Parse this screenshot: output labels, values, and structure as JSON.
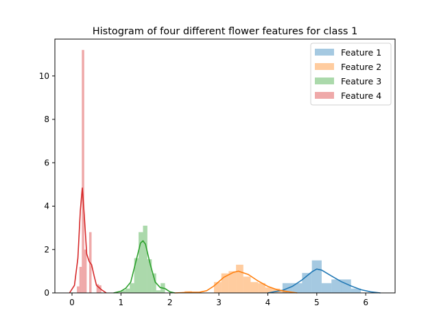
{
  "chart_data": {
    "type": "histogram",
    "title": "Histogram of four different flower features for class 1",
    "xlabel": "",
    "ylabel": "",
    "xlim": [
      -0.35,
      6.6
    ],
    "ylim": [
      0,
      11.7
    ],
    "x_ticks": [
      0,
      1,
      2,
      3,
      4,
      5,
      6
    ],
    "y_ticks": [
      0,
      2,
      4,
      6,
      8,
      10
    ],
    "grid": false,
    "legend_position": "top-right",
    "series": [
      {
        "name": "Feature 1",
        "color": "#1f77b4",
        "bins": [
          {
            "x0": 4.3,
            "x1": 4.5,
            "y": 0.45
          },
          {
            "x0": 4.5,
            "x1": 4.7,
            "y": 0.45
          },
          {
            "x0": 4.7,
            "x1": 4.9,
            "y": 0.92
          },
          {
            "x0": 4.9,
            "x1": 5.1,
            "y": 1.5
          },
          {
            "x0": 5.1,
            "x1": 5.3,
            "y": 0.45
          },
          {
            "x0": 5.3,
            "x1": 5.5,
            "y": 0.62
          },
          {
            "x0": 5.5,
            "x1": 5.7,
            "y": 0.62
          },
          {
            "x0": 5.7,
            "x1": 5.9,
            "y": 0.2
          }
        ],
        "kde": [
          [
            4.0,
            0.0
          ],
          [
            4.3,
            0.12
          ],
          [
            4.5,
            0.3
          ],
          [
            4.7,
            0.6
          ],
          [
            4.9,
            0.97
          ],
          [
            5.0,
            1.1
          ],
          [
            5.1,
            1.05
          ],
          [
            5.3,
            0.78
          ],
          [
            5.5,
            0.52
          ],
          [
            5.7,
            0.32
          ],
          [
            5.9,
            0.15
          ],
          [
            6.1,
            0.05
          ],
          [
            6.3,
            0.0
          ]
        ]
      },
      {
        "name": "Feature 2",
        "color": "#ff7f0e",
        "bins": [
          {
            "x0": 2.3,
            "x1": 2.45,
            "y": 0.08
          },
          {
            "x0": 2.9,
            "x1": 3.05,
            "y": 0.5
          },
          {
            "x0": 3.05,
            "x1": 3.2,
            "y": 0.9
          },
          {
            "x0": 3.2,
            "x1": 3.35,
            "y": 1.0
          },
          {
            "x0": 3.35,
            "x1": 3.5,
            "y": 1.3
          },
          {
            "x0": 3.5,
            "x1": 3.65,
            "y": 0.75
          },
          {
            "x0": 3.65,
            "x1": 3.8,
            "y": 0.5
          },
          {
            "x0": 3.8,
            "x1": 3.95,
            "y": 0.45
          },
          {
            "x0": 3.95,
            "x1": 4.1,
            "y": 0.25
          },
          {
            "x0": 4.1,
            "x1": 4.25,
            "y": 0.2
          },
          {
            "x0": 4.25,
            "x1": 4.4,
            "y": 0.1
          }
        ],
        "kde": [
          [
            2.1,
            0.0
          ],
          [
            2.4,
            0.03
          ],
          [
            2.6,
            0.03
          ],
          [
            2.75,
            0.1
          ],
          [
            2.9,
            0.32
          ],
          [
            3.1,
            0.72
          ],
          [
            3.3,
            0.95
          ],
          [
            3.4,
            1.0
          ],
          [
            3.6,
            0.85
          ],
          [
            3.8,
            0.55
          ],
          [
            4.0,
            0.3
          ],
          [
            4.2,
            0.14
          ],
          [
            4.4,
            0.06
          ],
          [
            4.6,
            0.0
          ]
        ]
      },
      {
        "name": "Feature 3",
        "color": "#2ca02c",
        "bins": [
          {
            "x0": 1.0,
            "x1": 1.09,
            "y": 0.12
          },
          {
            "x0": 1.09,
            "x1": 1.18,
            "y": 0.2
          },
          {
            "x0": 1.18,
            "x1": 1.27,
            "y": 0.45
          },
          {
            "x0": 1.27,
            "x1": 1.36,
            "y": 1.6
          },
          {
            "x0": 1.36,
            "x1": 1.45,
            "y": 2.8
          },
          {
            "x0": 1.45,
            "x1": 1.54,
            "y": 3.1
          },
          {
            "x0": 1.54,
            "x1": 1.63,
            "y": 1.55
          },
          {
            "x0": 1.63,
            "x1": 1.72,
            "y": 0.9
          },
          {
            "x0": 1.72,
            "x1": 1.81,
            "y": 0.12
          },
          {
            "x0": 1.81,
            "x1": 1.9,
            "y": 0.45
          }
        ],
        "kde": [
          [
            0.85,
            0.0
          ],
          [
            1.0,
            0.08
          ],
          [
            1.1,
            0.22
          ],
          [
            1.2,
            0.5
          ],
          [
            1.3,
            1.4
          ],
          [
            1.4,
            2.3
          ],
          [
            1.45,
            2.4
          ],
          [
            1.5,
            2.25
          ],
          [
            1.6,
            1.3
          ],
          [
            1.7,
            0.5
          ],
          [
            1.8,
            0.25
          ],
          [
            1.9,
            0.2
          ],
          [
            2.0,
            0.05
          ],
          [
            2.1,
            0.0
          ]
        ]
      },
      {
        "name": "Feature 4",
        "color": "#d62728",
        "bins": [
          {
            "x0": 0.1,
            "x1": 0.15,
            "y": 0.3
          },
          {
            "x0": 0.15,
            "x1": 0.2,
            "y": 1.2
          },
          {
            "x0": 0.2,
            "x1": 0.25,
            "y": 11.2
          },
          {
            "x0": 0.25,
            "x1": 0.3,
            "y": 2.0
          },
          {
            "x0": 0.35,
            "x1": 0.4,
            "y": 2.8
          },
          {
            "x0": 0.5,
            "x1": 0.55,
            "y": 0.4
          },
          {
            "x0": 0.55,
            "x1": 0.6,
            "y": 0.35
          }
        ],
        "kde": [
          [
            -0.05,
            0.0
          ],
          [
            0.05,
            0.35
          ],
          [
            0.12,
            1.6
          ],
          [
            0.17,
            3.8
          ],
          [
            0.21,
            4.85
          ],
          [
            0.25,
            3.6
          ],
          [
            0.3,
            1.8
          ],
          [
            0.35,
            1.45
          ],
          [
            0.4,
            1.3
          ],
          [
            0.45,
            0.8
          ],
          [
            0.5,
            0.35
          ],
          [
            0.55,
            0.25
          ],
          [
            0.6,
            0.15
          ],
          [
            0.7,
            0.0
          ]
        ]
      }
    ]
  }
}
